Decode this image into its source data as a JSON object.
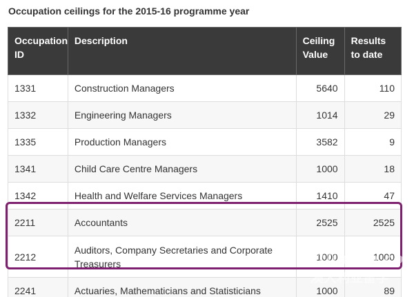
{
  "caption": "Occupation ceilings for the 2015-16 programme year",
  "table": {
    "headers": {
      "id": "Occupation ID",
      "description": "Description",
      "ceiling": "Ceiling Value",
      "results": "Results to date"
    },
    "rows": [
      {
        "id": "1331",
        "description": "Construction Managers",
        "ceiling": "5640",
        "results": "110"
      },
      {
        "id": "1332",
        "description": "Engineering Managers",
        "ceiling": "1014",
        "results": "29"
      },
      {
        "id": "1335",
        "description": "Production Managers",
        "ceiling": "3582",
        "results": "9"
      },
      {
        "id": "1341",
        "description": "Child Care Centre Managers",
        "ceiling": "1000",
        "results": "18"
      },
      {
        "id": "1342",
        "description": "Health and Welfare Services Managers",
        "ceiling": "1410",
        "results": "47"
      },
      {
        "id": "2211",
        "description": "Accountants",
        "ceiling": "2525",
        "results": "2525"
      },
      {
        "id": "2212",
        "description": "Auditors, Company Secretaries and Corporate Treasurers",
        "ceiling": "1000",
        "results": "1000"
      },
      {
        "id": "2241",
        "description": "Actuaries, Mathematicians and Statisticians",
        "ceiling": "1000",
        "results": "89"
      }
    ]
  },
  "highlight_color": "#7d1f6e",
  "watermark": {
    "text": "61liuxue.com",
    "sub": "澳大利亚留学",
    "small": "澳洲留学网"
  }
}
